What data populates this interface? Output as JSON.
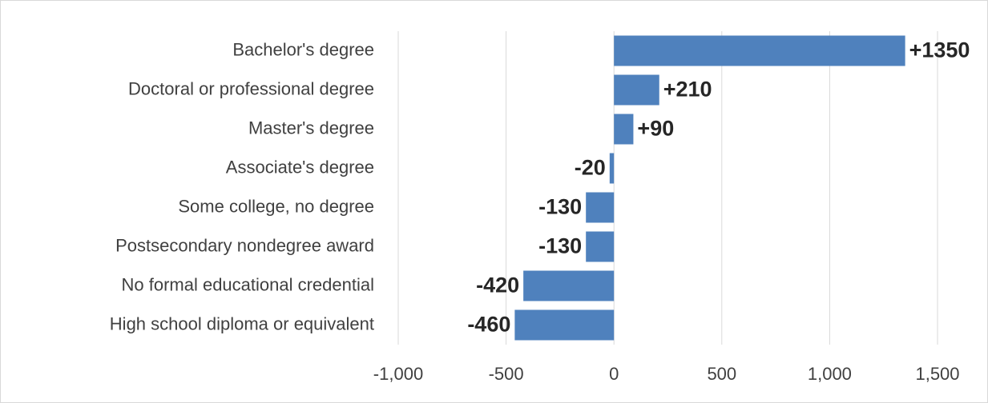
{
  "chart_data": {
    "type": "hbar",
    "categories": [
      "Bachelor's degree",
      "Doctoral or professional degree",
      "Master's degree",
      "Associate's degree",
      "Some college, no degree",
      "Postsecondary nondegree award",
      "No formal educational credential",
      "High school diploma or equivalent"
    ],
    "values": [
      1350,
      210,
      90,
      -20,
      -130,
      -130,
      -420,
      -460
    ],
    "value_labels": [
      "+1350",
      "+210",
      "+90",
      "-20",
      "-130",
      "-130",
      "-420",
      "-460"
    ],
    "color": "#4f81bd",
    "xlim": [
      -1000,
      1500
    ],
    "xticks": [
      {
        "value": -1000,
        "label": "-1,000"
      },
      -500,
      0,
      500,
      {
        "value": 1000,
        "label": "1,000"
      },
      {
        "value": 1500,
        "label": "1,500"
      }
    ],
    "grid": true
  }
}
